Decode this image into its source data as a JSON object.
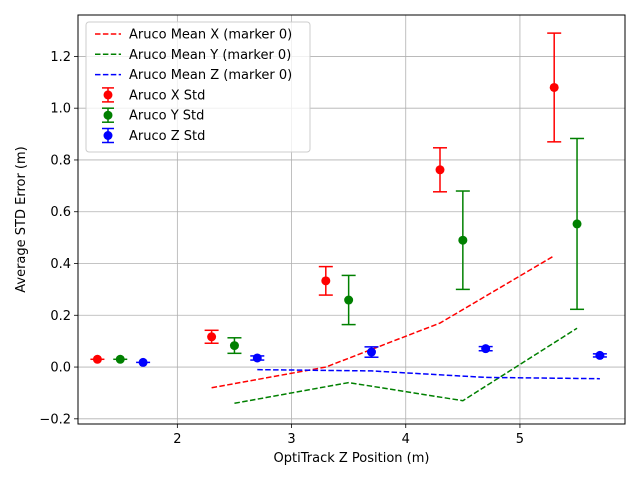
{
  "chart_data": {
    "type": "scatter",
    "xlabel": "OptiTrack Z Position (m)",
    "ylabel": "Average STD Error (m)",
    "xlim": [
      1.13,
      5.92
    ],
    "ylim": [
      -0.22,
      1.36
    ],
    "xticks": [
      2,
      3,
      4,
      5
    ],
    "yticks": [
      -0.2,
      0.0,
      0.2,
      0.4,
      0.6,
      0.8,
      1.0,
      1.2
    ],
    "xtick_labels": [
      "2",
      "3",
      "4",
      "5"
    ],
    "ytick_labels": [
      "−0.2",
      "0.0",
      "0.2",
      "0.4",
      "0.6",
      "0.8",
      "1.0",
      "1.2"
    ],
    "grid": true,
    "legend_position": "top-left",
    "lines": [
      {
        "name": "Aruco Mean X (marker 0)",
        "color": "#ff0000",
        "style": "dashed",
        "x": [
          2.3,
          3.3,
          4.3,
          5.3
        ],
        "y": [
          -0.08,
          0.0,
          0.17,
          0.43
        ]
      },
      {
        "name": "Aruco Mean Y (marker 0)",
        "color": "#008000",
        "style": "dashed",
        "x": [
          2.5,
          3.5,
          4.5,
          5.5
        ],
        "y": [
          -0.14,
          -0.06,
          -0.13,
          0.15
        ]
      },
      {
        "name": "Aruco Mean Z (marker 0)",
        "color": "#0000ff",
        "style": "dashed",
        "x": [
          2.7,
          3.7,
          4.7,
          5.7
        ],
        "y": [
          -0.01,
          -0.015,
          -0.04,
          -0.045
        ]
      }
    ],
    "error_series": [
      {
        "name": "Aruco X Std",
        "color": "#ff0000",
        "x": [
          1.3,
          2.3,
          3.3,
          4.3,
          5.3
        ],
        "y": [
          0.03,
          0.117,
          0.333,
          0.762,
          1.08
        ],
        "err": [
          0.0,
          0.025,
          0.055,
          0.085,
          0.21
        ]
      },
      {
        "name": "Aruco Y Std",
        "color": "#008000",
        "x": [
          1.5,
          2.5,
          3.5,
          4.5,
          5.5
        ],
        "y": [
          0.03,
          0.083,
          0.259,
          0.49,
          0.553
        ],
        "err": [
          0.0,
          0.03,
          0.095,
          0.19,
          0.33
        ]
      },
      {
        "name": "Aruco Z Std",
        "color": "#0000ff",
        "x": [
          1.7,
          2.7,
          3.7,
          4.7,
          5.7
        ],
        "y": [
          0.018,
          0.035,
          0.058,
          0.071,
          0.045
        ],
        "err": [
          0.0,
          0.008,
          0.02,
          0.008,
          0.006
        ]
      }
    ]
  }
}
